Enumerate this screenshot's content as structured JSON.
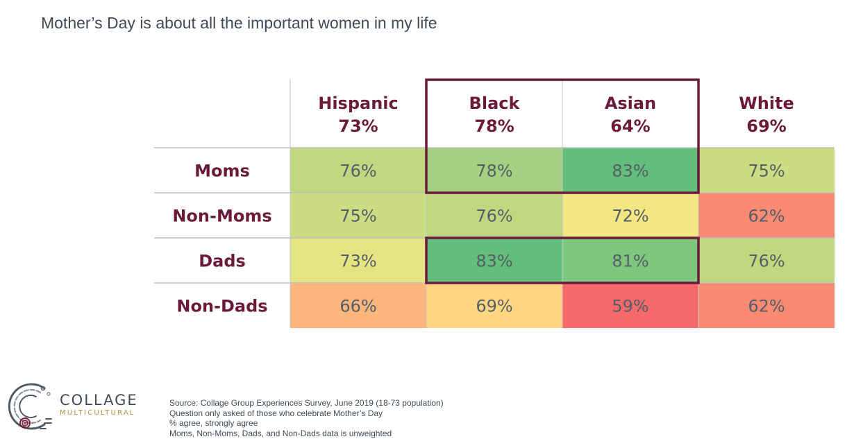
{
  "page": {
    "title": "Mother’s Day is about all the important women in my life"
  },
  "chart_data": {
    "type": "table",
    "columns": [
      {
        "name": "Hispanic",
        "total": "73%"
      },
      {
        "name": "Black",
        "total": "78%"
      },
      {
        "name": "Asian",
        "total": "64%"
      },
      {
        "name": "White",
        "total": "69%"
      }
    ],
    "rows": [
      {
        "label": "Moms",
        "values": [
          76,
          78,
          83,
          75
        ]
      },
      {
        "label": "Non-Moms",
        "values": [
          75,
          76,
          72,
          62
        ]
      },
      {
        "label": "Dads",
        "values": [
          73,
          83,
          81,
          76
        ]
      },
      {
        "label": "Non-Dads",
        "values": [
          66,
          69,
          59,
          62
        ]
      }
    ],
    "value_suffix": "%",
    "color_scale": {
      "min": 59,
      "max": 83,
      "low_color": "#f8696b",
      "mid_color": "#ffeb84",
      "high_color": "#63be7b"
    },
    "highlight_color": "#6b1a3a",
    "text_color": "#6b1a3a"
  },
  "logo": {
    "name": "COLLAGE",
    "sub": "MULTICULTURAL"
  },
  "footnotes": [
    "Source: Collage Group Experiences Survey, June 2019 (18-73 population)",
    "Question only asked of those who celebrate Mother’s Day",
    "% agree, strongly agree",
    "Moms, Non-Moms, Dads, and Non-Dads data is unweighted"
  ]
}
